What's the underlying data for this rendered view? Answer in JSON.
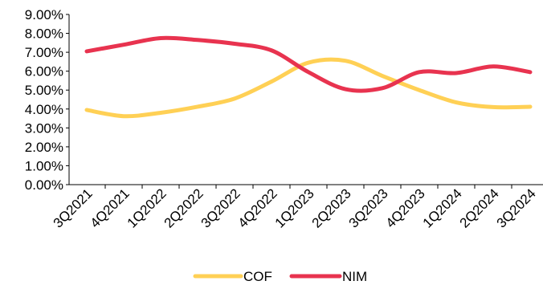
{
  "chart_data": {
    "type": "line",
    "categories": [
      "3Q2021",
      "4Q2021",
      "1Q2022",
      "2Q2022",
      "3Q2022",
      "4Q2022",
      "1Q2023",
      "2Q2023",
      "3Q2023",
      "4Q2023",
      "1Q2024",
      "2Q2024",
      "3Q2024"
    ],
    "series": [
      {
        "name": "COF",
        "color": "#FFD055",
        "values": [
          3.95,
          3.62,
          3.8,
          4.12,
          4.55,
          5.45,
          6.45,
          6.55,
          5.75,
          5.0,
          4.35,
          4.1,
          4.12
        ]
      },
      {
        "name": "NIM",
        "color": "#E8334F",
        "values": [
          7.05,
          7.4,
          7.75,
          7.65,
          7.45,
          7.1,
          5.95,
          5.05,
          5.1,
          5.95,
          5.9,
          6.25,
          5.95
        ]
      }
    ],
    "ylim": [
      0,
      9
    ],
    "yticks": [
      "0.00%",
      "1.00%",
      "2.00%",
      "3.00%",
      "4.00%",
      "5.00%",
      "6.00%",
      "7.00%",
      "8.00%",
      "9.00%"
    ],
    "grid": false,
    "legend_position": "bottom"
  }
}
